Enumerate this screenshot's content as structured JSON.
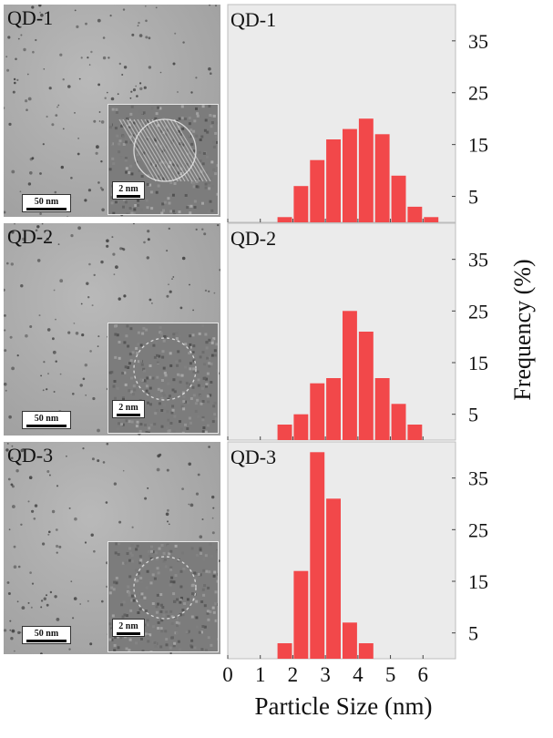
{
  "panels": [
    {
      "label": "QD-1",
      "scale_main": "50 nm",
      "scale_inset": "2 nm"
    },
    {
      "label": "QD-2",
      "scale_main": "50 nm",
      "scale_inset": "2 nm"
    },
    {
      "label": "QD-3",
      "scale_main": "50 nm",
      "scale_inset": "2 nm"
    }
  ],
  "chart_data": {
    "type": "bar",
    "xlabel": "Particle Size (nm)",
    "ylabel": "Frequency (%)",
    "xlim": [
      0,
      7
    ],
    "ylim": [
      0,
      42
    ],
    "x_ticks": [
      "0",
      "1",
      "2",
      "3",
      "4",
      "5",
      "6"
    ],
    "y_ticks": [
      "5",
      "15",
      "25",
      "35"
    ],
    "bin_width": 0.5,
    "bar_color": "#f2484a",
    "background": "#ebebeb",
    "series": [
      {
        "name": "QD-1",
        "bins": [
          1.5,
          2.0,
          2.5,
          3.0,
          3.5,
          4.0,
          4.5,
          5.0,
          5.5,
          6.0
        ],
        "values": [
          1,
          7,
          12,
          16,
          18,
          20,
          17,
          9,
          3,
          1
        ]
      },
      {
        "name": "QD-2",
        "bins": [
          1.5,
          2.0,
          2.5,
          3.0,
          3.5,
          4.0,
          4.5,
          5.0,
          5.5
        ],
        "values": [
          3,
          5,
          11,
          12,
          25,
          21,
          12,
          7,
          3
        ]
      },
      {
        "name": "QD-3",
        "bins": [
          1.5,
          2.0,
          2.5,
          3.0,
          3.5,
          4.0
        ],
        "values": [
          3,
          17,
          40,
          31,
          7,
          3
        ]
      }
    ]
  }
}
